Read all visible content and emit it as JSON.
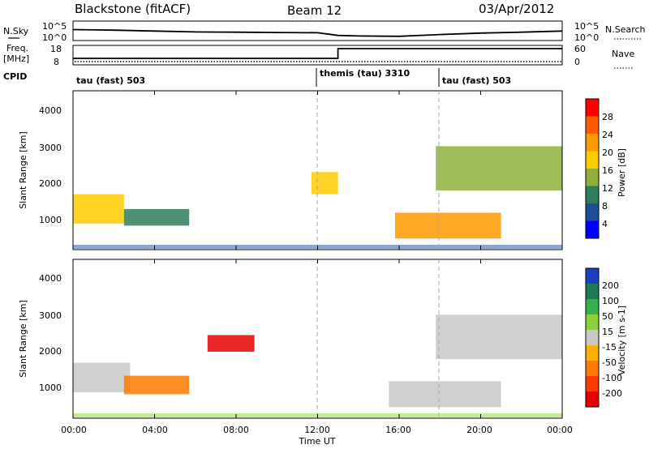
{
  "header": {
    "radar": "Blackstone (fitACF)",
    "beam": "Beam 12",
    "date": "03/Apr/2012"
  },
  "noise_panel": {
    "left_label": "N.Sky",
    "left_ticks": [
      "10^5",
      "10^0"
    ],
    "right_ticks": [
      "10^5",
      "10^0"
    ],
    "right_label": "N.Search"
  },
  "freq_panel": {
    "left_label_1": "Freq.",
    "left_label_2": "[MHz]",
    "left_ticks": [
      "18",
      "8"
    ],
    "right_ticks": [
      "60",
      "0"
    ],
    "right_label": "Nave"
  },
  "cpid": {
    "label": "CPID",
    "segments": [
      {
        "name": "tau (fast) 503",
        "start_hour": 0
      },
      {
        "name": "themis (tau) 3310",
        "start_hour": 12
      },
      {
        "name": "tau (fast) 503",
        "start_hour": 18
      }
    ]
  },
  "x_axis": {
    "label": "Time UT",
    "ticks": [
      "00:00",
      "04:00",
      "08:00",
      "12:00",
      "16:00",
      "20:00",
      "00:00"
    ]
  },
  "power_panel": {
    "ylabel": "Slant Range [km]",
    "yticks": [
      "1000",
      "2000",
      "3000",
      "4000"
    ],
    "colorbar_label": "Power [dB]",
    "colorbar_ticks": [
      "28",
      "24",
      "20",
      "16",
      "12",
      "8",
      "4"
    ],
    "colorbar_colors": [
      "#ff0000",
      "#ff5a00",
      "#ff9900",
      "#ffcc00",
      "#8fb13c",
      "#2e7d5b",
      "#1b4f9e",
      "#0000ff"
    ]
  },
  "velocity_panel": {
    "ylabel": "Slant Range [km]",
    "yticks": [
      "1000",
      "2000",
      "3000",
      "4000"
    ],
    "colorbar_label": "Velocity [m s-1]",
    "colorbar_ticks": [
      "200",
      "100",
      "50",
      "15",
      "-15",
      "-50",
      "-100",
      "-200"
    ],
    "colorbar_colors": [
      "#1a3fbf",
      "#1e7a55",
      "#36b04a",
      "#8ad13a",
      "#c8c8c8",
      "#ffb000",
      "#ff7a00",
      "#ff3a00",
      "#e60000"
    ]
  },
  "chart_data": [
    {
      "type": "heatmap",
      "title": "Power [dB]",
      "xlabel": "Time UT",
      "ylabel": "Slant Range [km]",
      "xlim_hours": [
        0,
        24
      ],
      "ylim_km": [
        200,
        4500
      ],
      "colorbar_range_db": [
        0,
        32
      ],
      "regions": [
        {
          "t0": 0.0,
          "t1": 2.5,
          "r0": 900,
          "r1": 1700,
          "value": 20
        },
        {
          "t0": 2.5,
          "t1": 5.7,
          "r0": 850,
          "r1": 1300,
          "value": 12
        },
        {
          "t0": 11.7,
          "t1": 13.0,
          "r0": 1700,
          "r1": 2300,
          "value": 20
        },
        {
          "t0": 15.8,
          "t1": 21.0,
          "r0": 500,
          "r1": 1200,
          "value": 24
        },
        {
          "t0": 17.8,
          "t1": 24.0,
          "r0": 1800,
          "r1": 3000,
          "value": 16
        }
      ]
    },
    {
      "type": "heatmap",
      "title": "Velocity [m s-1]",
      "xlabel": "Time UT",
      "ylabel": "Slant Range [km]",
      "xlim_hours": [
        0,
        24
      ],
      "ylim_km": [
        200,
        4500
      ],
      "colorbar_range_ms": [
        -250,
        250
      ],
      "regions": [
        {
          "t0": 0.0,
          "t1": 2.8,
          "r0": 900,
          "r1": 1700,
          "value": 0
        },
        {
          "t0": 2.5,
          "t1": 5.7,
          "r0": 850,
          "r1": 1350,
          "value": -70
        },
        {
          "t0": 15.5,
          "t1": 21.0,
          "r0": 500,
          "r1": 1200,
          "value": 0
        },
        {
          "t0": 17.8,
          "t1": 24.0,
          "r0": 1800,
          "r1": 3000,
          "value": 0
        },
        {
          "t0": 6.6,
          "t1": 8.9,
          "r0": 2000,
          "r1": 2450,
          "value": -180
        }
      ]
    },
    {
      "type": "line",
      "title": "N.Sky",
      "x_hours": [
        0,
        2,
        4,
        6,
        8,
        10,
        12,
        13,
        14,
        16,
        18,
        20,
        22,
        24
      ],
      "values_log10": [
        3.2,
        3.0,
        2.7,
        2.4,
        2.3,
        2.2,
        2.1,
        1.2,
        1.0,
        0.9,
        1.5,
        2.0,
        2.3,
        2.7
      ]
    },
    {
      "type": "line",
      "title": "Freq. [MHz]",
      "x_hours": [
        0,
        13,
        13,
        24
      ],
      "values": [
        11,
        11,
        17,
        17
      ]
    }
  ]
}
